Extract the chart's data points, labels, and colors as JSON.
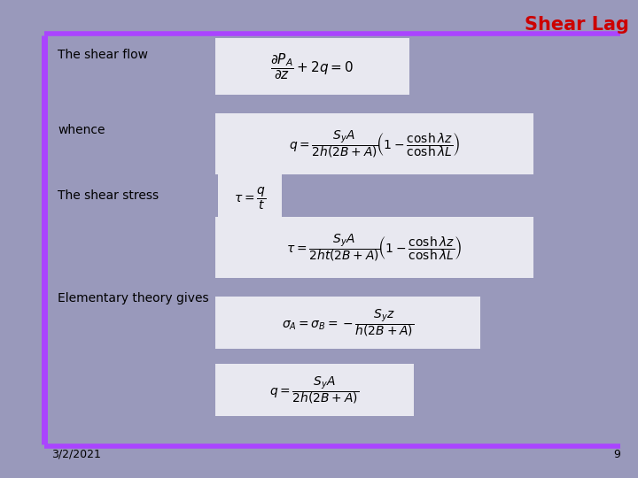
{
  "bg_color": "#9999bb",
  "line_color": "#aa44ff",
  "title": "Shear Lag",
  "title_color": "#cc0000",
  "date_text": "3/2/2021",
  "page_num": "9",
  "label_shear_flow": "The shear flow",
  "label_whence": "whence",
  "label_shear_stress": "The shear stress",
  "label_elementary": "Elementary theory gives",
  "eq1": "$\\dfrac{\\partial P_A}{\\partial z} + 2q = 0$",
  "eq2": "$q = \\dfrac{S_y A}{2h(2B + A)}\\!\\left(1 - \\dfrac{\\cosh \\lambda z}{\\cosh \\lambda L}\\right)$",
  "eq3": "$\\tau = \\dfrac{q}{t}$",
  "eq4": "$\\tau = \\dfrac{S_y A}{2ht(2B + A)}\\!\\left(1 - \\dfrac{\\cosh \\lambda z}{\\cosh \\lambda L}\\right)$",
  "eq5": "$\\sigma_A = \\sigma_B = -\\dfrac{S_y z}{h(2B + A)}$",
  "eq6": "$q = \\dfrac{S_y A}{2h(2B + A)}$",
  "box_facecolor": "#e8e8f0",
  "box_edgecolor": "none"
}
